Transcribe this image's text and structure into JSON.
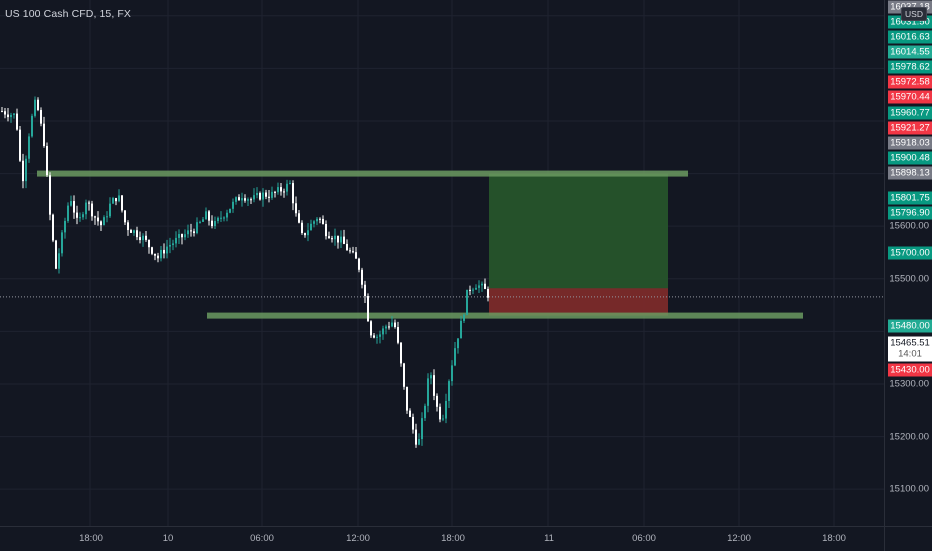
{
  "symbol": {
    "title": "US 100 Cash CFD, 15, FX"
  },
  "currency": "USD",
  "colors": {
    "background": "#131722",
    "grid": "#1f2330",
    "up": "#26a69a",
    "down": "#ffffff",
    "zone": "#6b9a60",
    "target_fill": "#26542b",
    "stop_fill": "#7b2a2a",
    "last_price_line": "#9598a1"
  },
  "price_axis": {
    "ticks": [
      "15600.00",
      "15500.00",
      "15300.00",
      "15200.00",
      "15100.00"
    ],
    "tags": [
      {
        "label": "16037.18",
        "color": "#787b86"
      },
      {
        "label": "16031.50",
        "color": "#089981"
      },
      {
        "label": "16016.63",
        "color": "#089981"
      },
      {
        "label": "16014.55",
        "color": "#22ab94"
      },
      {
        "label": "15978.62",
        "color": "#089981"
      },
      {
        "label": "15972.58",
        "color": "#f23645"
      },
      {
        "label": "15970.44",
        "color": "#f23645"
      },
      {
        "label": "15960.77",
        "color": "#089981"
      },
      {
        "label": "15921.27",
        "color": "#f23645"
      },
      {
        "label": "15918.03",
        "color": "#787b86"
      },
      {
        "label": "15900.48",
        "color": "#089981"
      },
      {
        "label": "15898.13",
        "color": "#787b86"
      },
      {
        "label": "15801.75",
        "color": "#089981"
      },
      {
        "label": "15796.90",
        "color": "#089981"
      },
      {
        "label": "15700.00",
        "color": "#089981"
      },
      {
        "label": "15480.00",
        "color": "#22ab94"
      },
      {
        "label": "15430.00",
        "color": "#f23645"
      }
    ],
    "current_price": "15465.51",
    "countdown": "14:01"
  },
  "time_axis": {
    "labels": [
      "18:00",
      "10",
      "06:00",
      "12:00",
      "18:00",
      "11",
      "06:00",
      "12:00",
      "18:00"
    ]
  },
  "chart_data": {
    "type": "candlestick",
    "timeframe": "15",
    "ylim": [
      15030,
      16030
    ],
    "levels": [
      15700,
      15430
    ],
    "position": {
      "entry": 15465.51,
      "target": 15700,
      "stop": 15430
    },
    "price_path": [
      [
        0,
        15820
      ],
      [
        16,
        15810
      ],
      [
        22,
        15680
      ],
      [
        30,
        15790
      ],
      [
        36,
        15840
      ],
      [
        44,
        15760
      ],
      [
        50,
        15620
      ],
      [
        56,
        15520
      ],
      [
        62,
        15580
      ],
      [
        70,
        15660
      ],
      [
        78,
        15600
      ],
      [
        86,
        15650
      ],
      [
        94,
        15620
      ],
      [
        102,
        15600
      ],
      [
        110,
        15640
      ],
      [
        118,
        15660
      ],
      [
        126,
        15600
      ],
      [
        134,
        15590
      ],
      [
        142,
        15580
      ],
      [
        150,
        15560
      ],
      [
        158,
        15540
      ],
      [
        166,
        15560
      ],
      [
        174,
        15570
      ],
      [
        182,
        15580
      ],
      [
        190,
        15590
      ],
      [
        198,
        15600
      ],
      [
        206,
        15620
      ],
      [
        214,
        15600
      ],
      [
        222,
        15620
      ],
      [
        232,
        15640
      ],
      [
        242,
        15660
      ],
      [
        252,
        15650
      ],
      [
        262,
        15660
      ],
      [
        272,
        15660
      ],
      [
        282,
        15670
      ],
      [
        290,
        15680
      ],
      [
        296,
        15620
      ],
      [
        302,
        15580
      ],
      [
        310,
        15600
      ],
      [
        318,
        15620
      ],
      [
        326,
        15590
      ],
      [
        334,
        15580
      ],
      [
        342,
        15570
      ],
      [
        350,
        15550
      ],
      [
        358,
        15530
      ],
      [
        364,
        15480
      ],
      [
        370,
        15400
      ],
      [
        378,
        15390
      ],
      [
        386,
        15410
      ],
      [
        394,
        15420
      ],
      [
        400,
        15350
      ],
      [
        406,
        15260
      ],
      [
        412,
        15220
      ],
      [
        418,
        15180
      ],
      [
        424,
        15250
      ],
      [
        430,
        15330
      ],
      [
        436,
        15260
      ],
      [
        442,
        15230
      ],
      [
        448,
        15300
      ],
      [
        456,
        15380
      ],
      [
        462,
        15420
      ],
      [
        468,
        15480
      ],
      [
        476,
        15490
      ],
      [
        484,
        15480
      ],
      [
        490,
        15466
      ]
    ]
  }
}
